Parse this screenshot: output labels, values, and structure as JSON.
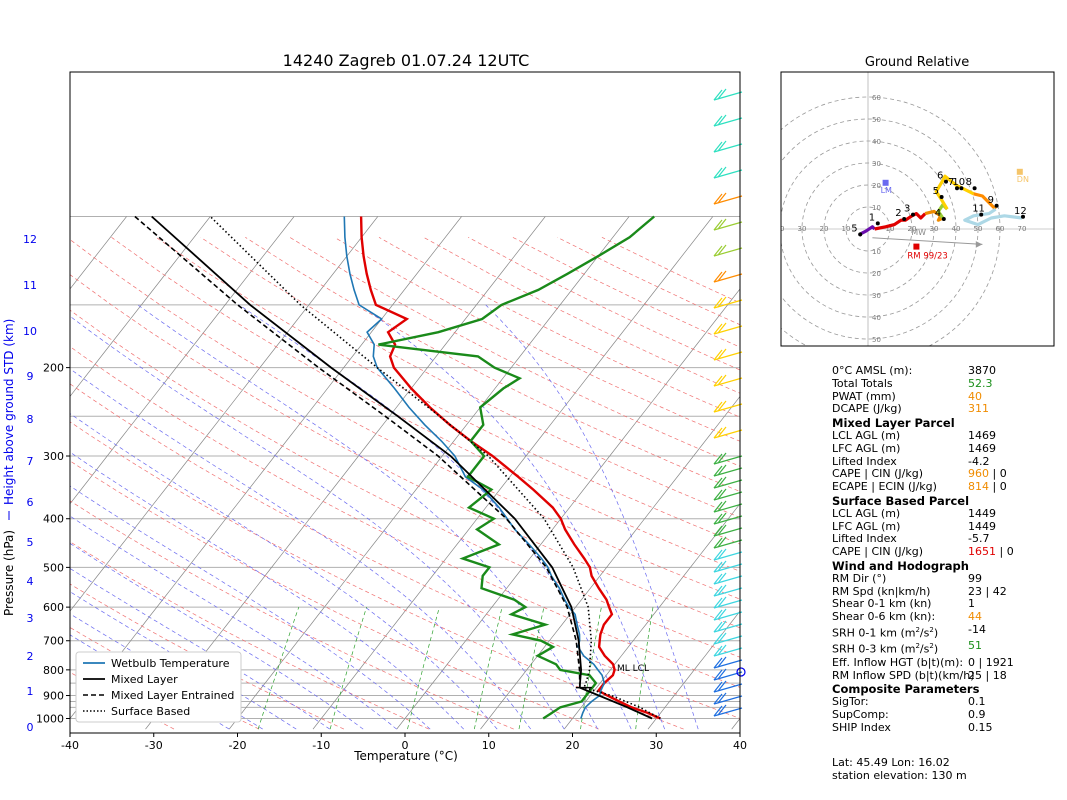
{
  "title": "14240 Zagreb 01.07.24 12UTC",
  "hodograph_title": "Ground Relative",
  "axes": {
    "xlabel": "Temperature (°C)",
    "ylabel": "Pressure (hPa)",
    "height_label": "Height above ground STD (km)",
    "x_ticks": [
      "-40",
      "-30",
      "-20",
      "-10",
      "0",
      "10",
      "20",
      "30",
      "40"
    ],
    "p_ticks": [
      "200",
      "300",
      "400",
      "500",
      "600",
      "700",
      "800",
      "900",
      "1000"
    ],
    "km_ticks": [
      "0",
      "1",
      "2",
      "3",
      "4",
      "5",
      "6",
      "7",
      "8",
      "9",
      "10",
      "11",
      "12"
    ]
  },
  "legend": {
    "wetbulb": "Wetbulb Temperature",
    "mixed": "Mixed Layer",
    "entrained": "Mixed Layer Entrained",
    "surface": "Surface Based"
  },
  "ml_lcl_label": "ML LCL",
  "hodo": {
    "rings": [
      "10",
      "20",
      "30",
      "40",
      "50",
      "60"
    ],
    "x_labels": [
      "40",
      "30",
      "20",
      "10",
      "10",
      "20",
      "30",
      "40",
      "50",
      "60",
      "70"
    ],
    "y_labels": [
      "60",
      "50",
      "40",
      "30",
      "20",
      "10",
      "10",
      "20",
      "30",
      "40",
      "50"
    ],
    "point_labels": [
      "1",
      "2",
      "3",
      "4",
      "5",
      "5",
      "6",
      "7",
      "8",
      "9",
      "10",
      "11",
      "12"
    ],
    "lm": "LM",
    "mw": "MW",
    "dn": "DN",
    "rm": "RM 99/23"
  },
  "info": {
    "freezing_label": "0°C AMSL (m):",
    "freezing": "3870",
    "tt_label": "Total Totals",
    "tt": "52.3",
    "pwat_label": "PWAT (mm)",
    "pwat": "40",
    "dcape_label": "DCAPE (J/kg)",
    "dcape": "311",
    "ml_header": "Mixed Layer Parcel",
    "ml_lcl_label": "LCL AGL (m)",
    "ml_lcl": "1469",
    "ml_lfc_label": "LFC AGL (m)",
    "ml_lfc": "1469",
    "ml_li_label": "Lifted Index",
    "ml_li": "-4.2",
    "ml_cape_label": "CAPE | CIN (J/kg)",
    "ml_cape": "960",
    "ml_cin": "| 0",
    "ml_ecape_label": "ECAPE | ECIN (J/kg)",
    "ml_ecape": "814",
    "ml_ecin": "| 0",
    "sb_header": "Surface Based Parcel",
    "sb_lcl_label": "LCL AGL (m)",
    "sb_lcl": "1449",
    "sb_lfc_label": "LFC AGL (m)",
    "sb_lfc": "1449",
    "sb_li_label": "Lifted Index",
    "sb_li": "-5.7",
    "sb_cape_label": "CAPE | CIN (J/kg)",
    "sb_cape": "1651",
    "sb_cin": "| 0",
    "wind_header": "Wind and Hodograph",
    "rmdir_label": "RM Dir (°)",
    "rmdir": "99",
    "rmspd_label": "RM Spd (kn|km/h)",
    "rmspd": "23 | 42",
    "sh01_label": "Shear 0-1 km (kn)",
    "sh01": "1",
    "sh06_label": "Shear 0-6 km (kn):",
    "sh06": "44",
    "srh01_label": "SRH 0-1 km (m",
    "srh01": "-14",
    "srh03_label": "SRH 0-3 km (m",
    "srh03": "51",
    "srh_units_tail": "/s",
    "srh_units_end": ")",
    "effhgt_label": "Eff. Inflow HGT (b|t)(m):",
    "effhgt": "0 | 1921",
    "rmspd_eff_label": "RM Inflow SPD (b|t)(km/h)",
    "rmspd_eff": "25 | 18",
    "comp_header": "Composite Parameters",
    "sigtor_label": "SigTor:",
    "sigtor": "0.1",
    "supcomp_label": "SupComp:",
    "supcomp": "0.9",
    "ship_label": "SHIP Index",
    "ship": "0.15"
  },
  "footer": {
    "latlon": "Lat: 45.49  Lon: 16.02",
    "elev": "station elevation: 130 m"
  },
  "chart_data": {
    "type": "line",
    "title": "14240 Zagreb 01.07.24 12UTC",
    "xlabel": "Temperature (°C)",
    "ylabel": "Pressure (hPa)",
    "xlim": [
      -40,
      40
    ],
    "ylim_hpa": [
      1050,
      100
    ],
    "skew": "skew-T log-p",
    "series": [
      {
        "name": "Temperature",
        "color": "#e00000",
        "p": [
          1000,
          975,
          950,
          925,
          900,
          880,
          850,
          820,
          800,
          780,
          750,
          720,
          700,
          680,
          650,
          620,
          600,
          580,
          550,
          520,
          500,
          480,
          450,
          420,
          400,
          380,
          350,
          330,
          300,
          280,
          260,
          240,
          220,
          200,
          190,
          180,
          170,
          160,
          150,
          140,
          130,
          120,
          110,
          100
        ],
        "t": [
          30.5,
          28.5,
          26,
          24,
          22,
          20.5,
          20.5,
          20.8,
          20.5,
          19.8,
          18,
          16.5,
          16,
          15.5,
          15,
          15,
          14,
          13,
          11,
          9,
          8,
          6.5,
          4,
          1.5,
          0,
          -2,
          -6,
          -9,
          -14,
          -18,
          -22,
          -26,
          -30,
          -34,
          -35.5,
          -36,
          -38,
          -37,
          -42,
          -44,
          -46,
          -48,
          -50,
          -52
        ]
      },
      {
        "name": "Wetbulb Temperature",
        "color": "#1f77b4",
        "p": [
          1000,
          975,
          950,
          925,
          900,
          880,
          850,
          820,
          800,
          780,
          750,
          720,
          700,
          680,
          650,
          620,
          600,
          580,
          550,
          520,
          500,
          480,
          450,
          420,
          400,
          380,
          350,
          330,
          300,
          280,
          260,
          240,
          220,
          200,
          190,
          180,
          170,
          160,
          150,
          140,
          130,
          120,
          110,
          100
        ],
        "t": [
          21,
          20.7,
          20.5,
          20.7,
          21.1,
          20.8,
          20.5,
          19.5,
          18.5,
          17.5,
          15.5,
          14,
          13.6,
          13,
          11.8,
          10.6,
          9.2,
          8,
          6.3,
          4.2,
          3,
          1.4,
          -1.4,
          -4.5,
          -6.4,
          -8.4,
          -12,
          -15.3,
          -18.5,
          -21.5,
          -25,
          -28.5,
          -32,
          -36,
          -37.5,
          -38.5,
          -40.5,
          -40,
          -44,
          -46,
          -48,
          -50,
          -52,
          -54
        ]
      },
      {
        "name": "Dewpoint",
        "color": "#1a8a1a",
        "p": [
          1000,
          975,
          950,
          925,
          900,
          880,
          850,
          820,
          800,
          780,
          750,
          720,
          700,
          680,
          650,
          620,
          600,
          580,
          550,
          520,
          500,
          480,
          450,
          420,
          400,
          380,
          350,
          330,
          300,
          280,
          260,
          240,
          220,
          210,
          200,
          190,
          180,
          170,
          160,
          150,
          140,
          130,
          120,
          110,
          100
        ],
        "t": [
          16.5,
          17,
          17.5,
          19.5,
          19.5,
          19.5,
          19.5,
          18,
          14,
          13,
          10,
          11,
          9,
          5,
          8,
          3,
          4,
          2,
          -3,
          -4,
          -4,
          -8,
          -5,
          -9,
          -8,
          -12,
          -11,
          -15,
          -15,
          -18,
          -18,
          -20,
          -19,
          -18,
          -22,
          -25,
          -38,
          -32,
          -28,
          -27,
          -24,
          -22,
          -20,
          -18,
          -17
        ]
      },
      {
        "name": "Mixed Layer",
        "color": "#000000",
        "p": [
          1000,
          950,
          900,
          868,
          850,
          800,
          700,
          600,
          500,
          400,
          300,
          250,
          200,
          150,
          100
        ],
        "t": [
          29.5,
          25.5,
          21,
          18,
          17.6,
          16.5,
          13.5,
          9.5,
          3.5,
          -5.5,
          -19,
          -29,
          -41.5,
          -57,
          -77
        ]
      },
      {
        "name": "Mixed Layer Entrained",
        "color": "#000000",
        "p": [
          868,
          800,
          700,
          600,
          500,
          400,
          300,
          250,
          200,
          150,
          100
        ],
        "t": [
          18,
          16.3,
          13.2,
          9,
          2.8,
          -6.5,
          -20.5,
          -30.5,
          -43,
          -58.5,
          -79
        ]
      },
      {
        "name": "Surface Based",
        "color": "#000000",
        "p": [
          1000,
          950,
          900,
          868,
          850,
          800,
          700,
          600,
          500,
          400,
          300,
          250,
          200,
          150,
          100
        ],
        "t": [
          30.5,
          27,
          22.5,
          18.5,
          18.3,
          17.5,
          15,
          11.5,
          6,
          -2,
          -14.5,
          -24,
          -36,
          -51,
          -70
        ]
      }
    ],
    "hodograph": {
      "title": "Ground Relative",
      "segments": [
        {
          "color": "#6a0dad",
          "points": [
            [
              -4,
              -3
            ],
            [
              -3,
              -2
            ],
            [
              -1,
              -1
            ],
            [
              2,
              1
            ],
            [
              3,
              0
            ]
          ]
        },
        {
          "color": "#e00000",
          "points": [
            [
              3,
              0
            ],
            [
              8,
              1
            ],
            [
              12,
              2
            ],
            [
              15,
              4
            ],
            [
              17,
              4
            ],
            [
              20,
              6
            ],
            [
              22,
              7
            ],
            [
              24,
              5
            ],
            [
              26,
              7
            ]
          ]
        },
        {
          "color": "#f08c00",
          "points": [
            [
              26,
              7
            ],
            [
              30,
              8
            ],
            [
              33,
              6
            ],
            [
              32,
              4
            ],
            [
              34,
              5
            ]
          ]
        },
        {
          "color": "#9acd32",
          "points": [
            [
              34,
              5
            ],
            [
              32,
              8
            ],
            [
              34,
              11
            ],
            [
              36,
              9
            ]
          ]
        },
        {
          "color": "#ffd000",
          "points": [
            [
              36,
              9
            ],
            [
              33,
              14
            ],
            [
              31,
              17
            ],
            [
              34,
              22
            ],
            [
              35,
              24
            ],
            [
              40,
              20
            ],
            [
              44,
              18
            ],
            [
              48,
              16
            ]
          ]
        },
        {
          "color": "#ff8c00",
          "points": [
            [
              48,
              16
            ],
            [
              52,
              15
            ],
            [
              55,
              12
            ],
            [
              58,
              9
            ]
          ]
        },
        {
          "color": "#add8e6",
          "points": [
            [
              58,
              9
            ],
            [
              55,
              7
            ],
            [
              48,
              6
            ],
            [
              44,
              4
            ],
            [
              50,
              2
            ],
            [
              56,
              5
            ],
            [
              62,
              6
            ],
            [
              70,
              5
            ]
          ]
        }
      ],
      "markers": {
        "LM": [
          8,
          21
        ],
        "MW": [
          21,
          1
        ],
        "DN": [
          69,
          26
        ],
        "RM": [
          22,
          -8
        ]
      }
    }
  }
}
